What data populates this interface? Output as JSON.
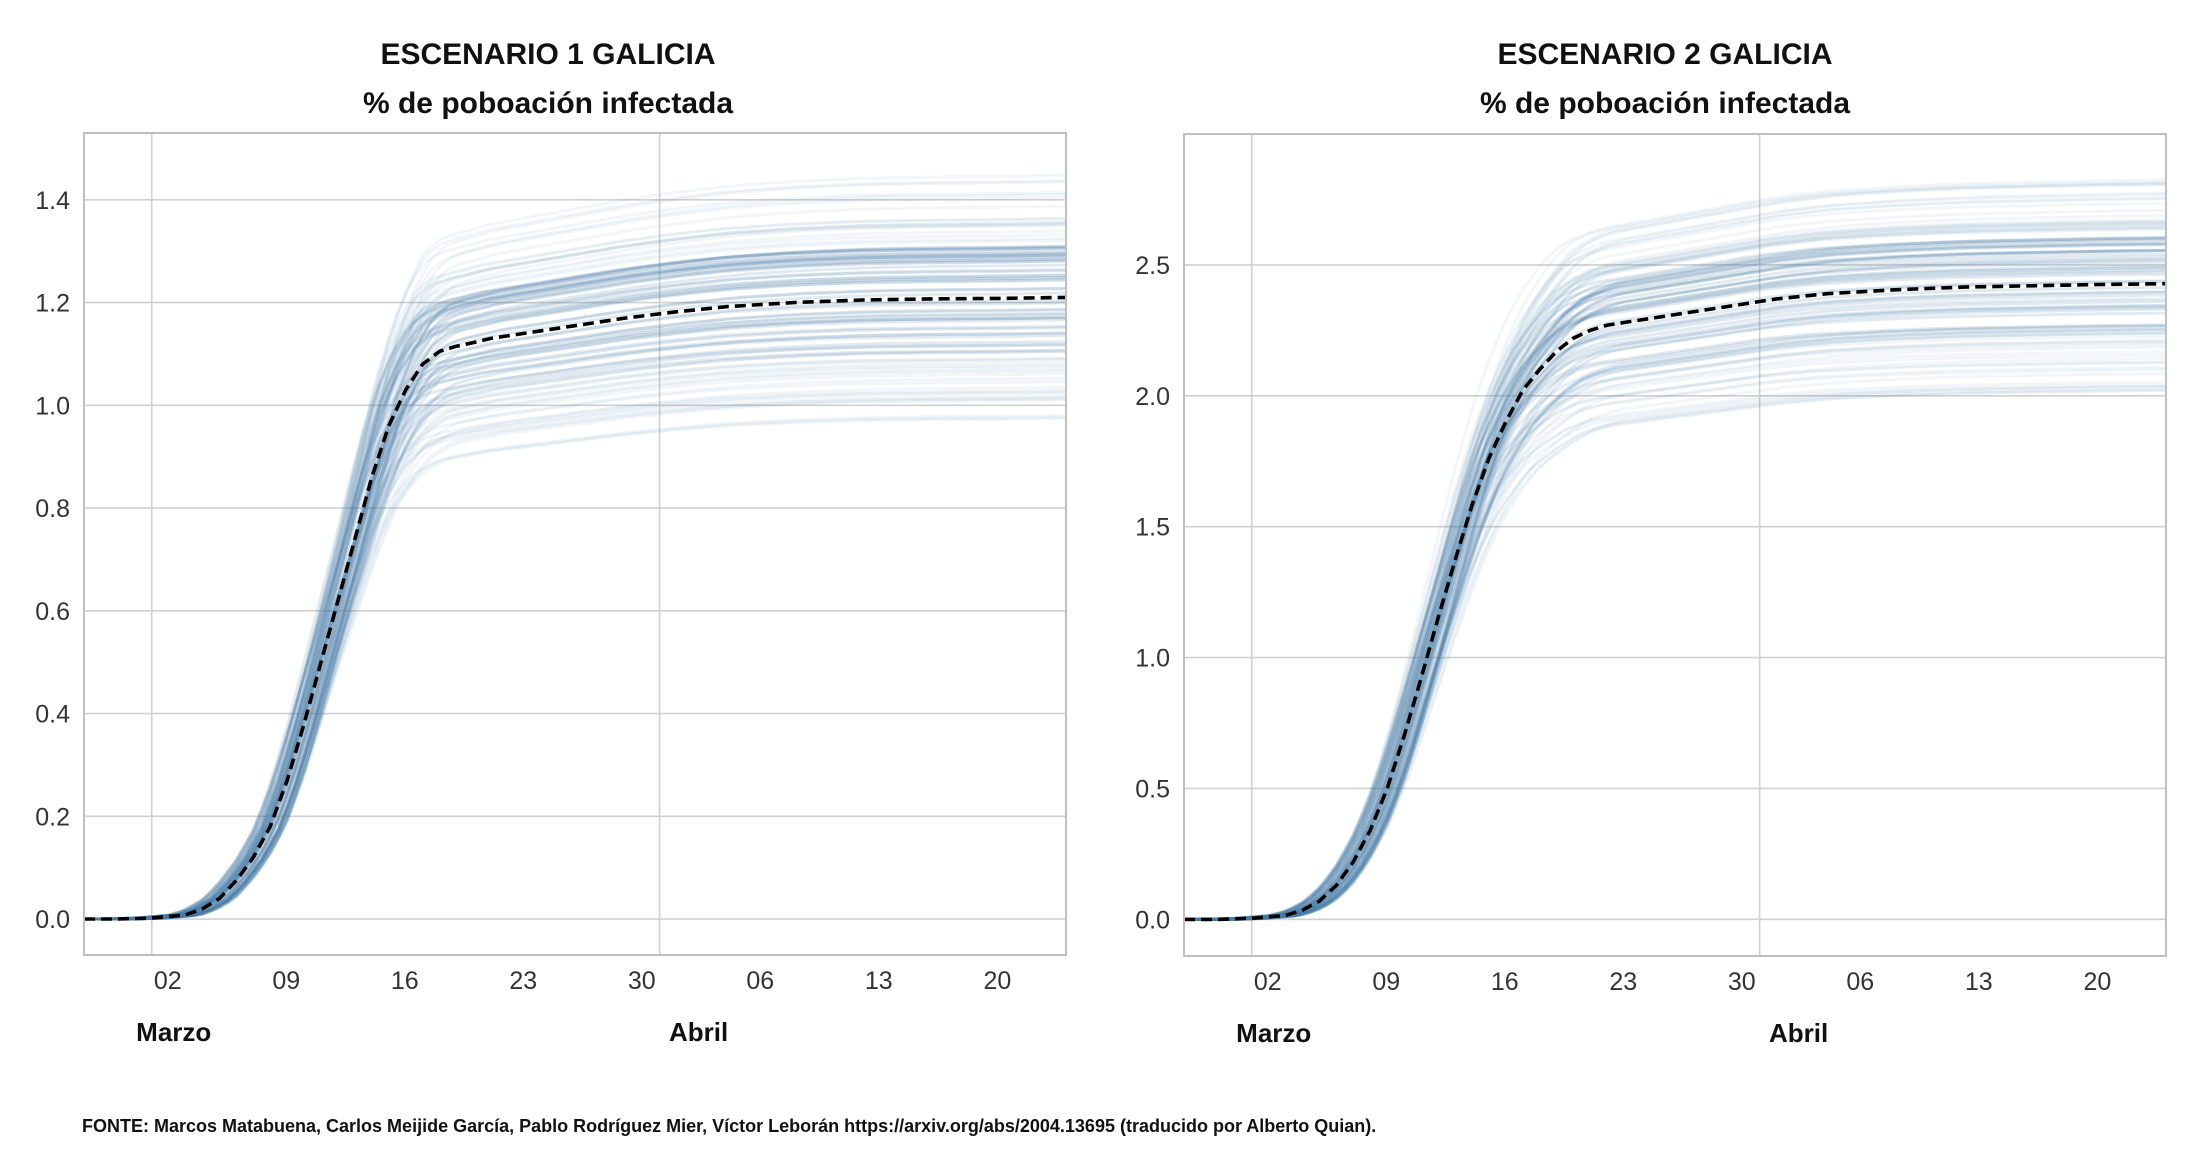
{
  "source_note": "FONTE: Marcos Matabuena, Carlos Meijide García, Pablo Rodríguez Mier, Víctor Leborán https://arxiv.org/abs/2004.13695 (traducido por Alberto Quian).",
  "colors": {
    "ensemble": "#4a7bab",
    "median": "#000000",
    "grid": "#d0d0d0",
    "frame": "#bfbfbf"
  },
  "chart_data": [
    {
      "type": "line",
      "title": "ESCENARIO 1 GALICIA",
      "subtitle": "% de poboación infectada",
      "xlabel": "",
      "ylabel": "",
      "x_ticks": [
        "02",
        "09",
        "16",
        "23",
        "30",
        "06",
        "13",
        "20"
      ],
      "x_tick_days": [
        2,
        9,
        16,
        23,
        30,
        37,
        44,
        51
      ],
      "month_labels": [
        {
          "label": "Marzo",
          "day": 2
        },
        {
          "label": "Abril",
          "day": 33
        }
      ],
      "x_range": [
        -2,
        56
      ],
      "ylim": [
        -0.07,
        1.53
      ],
      "y_ticks": [
        0.0,
        0.2,
        0.4,
        0.6,
        0.8,
        1.0,
        1.2,
        1.4
      ],
      "y_tick_labels": [
        "0.0",
        "0.2",
        "0.4",
        "0.6",
        "0.8",
        "1.0",
        "1.2",
        "1.4"
      ],
      "vlines_days": [
        2,
        32
      ],
      "grid": true,
      "series": [
        {
          "style": "dashed",
          "x": [
            -2,
            0,
            2,
            4,
            5,
            6,
            7,
            8,
            9,
            10,
            11,
            12,
            13,
            14,
            15,
            16,
            17,
            18,
            19,
            20,
            21,
            22,
            23,
            25,
            27,
            30,
            33,
            36,
            40,
            44,
            48,
            52,
            56
          ],
          "y": [
            0.0,
            0.0,
            0.002,
            0.008,
            0.02,
            0.04,
            0.075,
            0.12,
            0.18,
            0.27,
            0.38,
            0.5,
            0.62,
            0.74,
            0.86,
            0.96,
            1.03,
            1.08,
            1.105,
            1.115,
            1.122,
            1.13,
            1.135,
            1.145,
            1.155,
            1.17,
            1.182,
            1.192,
            1.2,
            1.205,
            1.207,
            1.208,
            1.21
          ]
        }
      ],
      "ensemble_final_range": [
        0.97,
        1.45
      ]
    },
    {
      "type": "line",
      "title": "ESCENARIO 2 GALICIA",
      "subtitle": "% de poboación infectada",
      "xlabel": "",
      "ylabel": "",
      "x_ticks": [
        "02",
        "09",
        "16",
        "23",
        "30",
        "06",
        "13",
        "20"
      ],
      "x_tick_days": [
        2,
        9,
        16,
        23,
        30,
        37,
        44,
        51
      ],
      "month_labels": [
        {
          "label": "Marzo",
          "day": 2
        },
        {
          "label": "Abril",
          "day": 33
        }
      ],
      "x_range": [
        -2,
        56
      ],
      "ylim": [
        -0.14,
        3.0
      ],
      "y_ticks": [
        0.0,
        0.5,
        1.0,
        1.5,
        2.0,
        2.5
      ],
      "y_tick_labels": [
        "0.0",
        "0.5",
        "1.0",
        "1.5",
        "2.0",
        "2.5"
      ],
      "vlines_days": [
        2,
        32
      ],
      "grid": true,
      "series": [
        {
          "style": "dashed",
          "x": [
            -2,
            0,
            2,
            4,
            5,
            6,
            7,
            8,
            9,
            10,
            11,
            12,
            13,
            14,
            15,
            16,
            17,
            18,
            19,
            20,
            21,
            22,
            23,
            25,
            27,
            30,
            33,
            36,
            40,
            44,
            48,
            52,
            56
          ],
          "y": [
            0.0,
            0.0,
            0.004,
            0.015,
            0.035,
            0.07,
            0.13,
            0.22,
            0.34,
            0.5,
            0.7,
            0.92,
            1.15,
            1.37,
            1.58,
            1.76,
            1.9,
            2.02,
            2.1,
            2.17,
            2.22,
            2.25,
            2.27,
            2.29,
            2.31,
            2.34,
            2.37,
            2.39,
            2.405,
            2.415,
            2.42,
            2.425,
            2.428
          ]
        }
      ],
      "ensemble_final_range": [
        2.0,
        2.83
      ]
    }
  ]
}
